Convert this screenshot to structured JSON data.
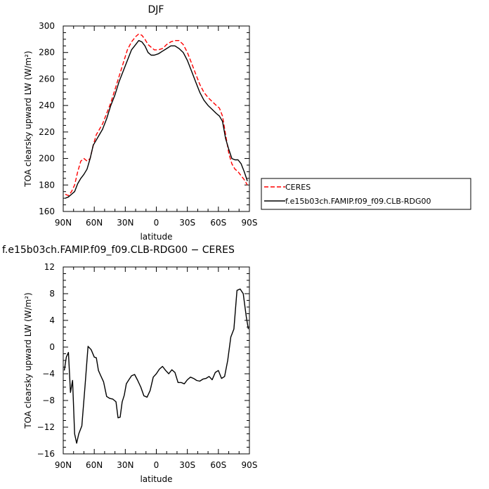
{
  "chart_data": [
    {
      "type": "line",
      "title": "DJF",
      "xlabel": "latitude",
      "ylabel": "TOA clearsky upward LW (W/m²)",
      "xlim": [
        90,
        -90
      ],
      "ylim": [
        160,
        300
      ],
      "xticks": [
        90,
        60,
        30,
        0,
        -30,
        -60,
        -90
      ],
      "xtick_labels": [
        "90N",
        "60N",
        "30N",
        "0",
        "30S",
        "60S",
        "90S"
      ],
      "yticks": [
        160,
        180,
        200,
        220,
        240,
        260,
        280,
        300
      ],
      "ytick_labels": [
        "160",
        "180",
        "200",
        "220",
        "240",
        "260",
        "280",
        "300"
      ],
      "legend_position": "right",
      "series": [
        {
          "name": "CERES",
          "color": "#ff0000",
          "dash": "dashed",
          "x": [
            88,
            85,
            82,
            79,
            76,
            73,
            70,
            67,
            64,
            61,
            58,
            55,
            52,
            48,
            44,
            40,
            36,
            32,
            28,
            24,
            20,
            17,
            14,
            11,
            8,
            5,
            2,
            -2,
            -6,
            -10,
            -14,
            -18,
            -22,
            -26,
            -30,
            -34,
            -38,
            -42,
            -46,
            -50,
            -54,
            -58,
            -61,
            -64,
            -67,
            -70,
            -73,
            -76,
            -79,
            -82,
            -85,
            -88
          ],
          "y": [
            173,
            172,
            175,
            180,
            190,
            198,
            200,
            198,
            200,
            210,
            218,
            222,
            226,
            234,
            242,
            252,
            262,
            272,
            282,
            288,
            292,
            294,
            293,
            290,
            286,
            284,
            282,
            282,
            283,
            286,
            288,
            289,
            289,
            286,
            280,
            272,
            264,
            256,
            250,
            246,
            243,
            240,
            238,
            232,
            218,
            204,
            196,
            192,
            190,
            187,
            184,
            180
          ]
        },
        {
          "name": "f.e15b03ch.FAMIP.f09_f09.CLB-RDG00",
          "color": "#000000",
          "dash": "solid",
          "x": [
            88,
            85,
            82,
            79,
            76,
            73,
            70,
            67,
            64,
            61,
            58,
            55,
            52,
            48,
            44,
            40,
            36,
            32,
            28,
            24,
            20,
            17,
            14,
            11,
            8,
            5,
            2,
            -2,
            -6,
            -10,
            -14,
            -18,
            -22,
            -26,
            -30,
            -34,
            -38,
            -42,
            -46,
            -50,
            -54,
            -58,
            -61,
            -64,
            -67,
            -70,
            -73,
            -76,
            -79,
            -82,
            -85,
            -88
          ],
          "y": [
            170,
            171,
            173,
            175,
            181,
            185,
            188,
            192,
            200,
            210,
            214,
            218,
            222,
            230,
            240,
            248,
            258,
            266,
            274,
            282,
            286,
            289,
            288,
            285,
            280,
            278,
            278,
            279,
            281,
            283,
            285,
            285,
            283,
            280,
            274,
            266,
            258,
            250,
            244,
            240,
            237,
            234,
            232,
            228,
            215,
            207,
            200,
            199,
            199,
            196,
            190,
            183
          ]
        }
      ]
    },
    {
      "type": "line",
      "title": "f.e15b03ch.FAMIP.f09_f09.CLB-RDG00 − CERES",
      "xlabel": "latitude",
      "ylabel": "TOA clearsky upward LW (W/m²)",
      "xlim": [
        90,
        -90
      ],
      "ylim": [
        -16,
        12
      ],
      "xticks": [
        90,
        60,
        30,
        0,
        -30,
        -60,
        -90
      ],
      "xtick_labels": [
        "90N",
        "60N",
        "30N",
        "0",
        "30S",
        "60S",
        "90S"
      ],
      "yticks": [
        -16,
        -12,
        -8,
        -4,
        0,
        4,
        8,
        12
      ],
      "ytick_labels": [
        "−16",
        "−12",
        "−8",
        "−4",
        "0",
        "4",
        "8",
        "12"
      ],
      "series": [
        {
          "color": "#000000",
          "dash": "solid",
          "x": [
            89,
            87,
            85,
            83,
            81,
            79,
            77,
            75,
            72,
            69,
            66,
            63,
            60,
            58,
            56,
            54,
            51,
            48,
            45,
            42,
            39,
            37,
            35,
            33,
            31,
            29,
            27,
            24,
            21,
            18,
            15,
            12,
            9,
            6,
            3,
            0,
            -3,
            -6,
            -9,
            -12,
            -15,
            -18,
            -21,
            -24,
            -27,
            -30,
            -33,
            -36,
            -39,
            -42,
            -45,
            -48,
            -51,
            -54,
            -57,
            -60,
            -63,
            -66,
            -69,
            -72,
            -75,
            -78,
            -81,
            -84,
            -87,
            -89
          ],
          "y": [
            -3.5,
            -1.5,
            -0.8,
            -6.8,
            -5.0,
            -13.0,
            -14.4,
            -13.0,
            -11.8,
            -6.0,
            0.1,
            -0.4,
            -1.5,
            -1.6,
            -3.5,
            -4.2,
            -5.2,
            -7.4,
            -7.7,
            -7.8,
            -8.2,
            -10.6,
            -10.5,
            -8.2,
            -7.2,
            -5.5,
            -5.0,
            -4.3,
            -4.1,
            -5.0,
            -6.0,
            -7.3,
            -7.5,
            -6.5,
            -4.5,
            -4.0,
            -3.3,
            -2.9,
            -3.5,
            -4.0,
            -3.4,
            -3.8,
            -5.3,
            -5.3,
            -5.5,
            -4.9,
            -4.5,
            -4.7,
            -5.0,
            -5.1,
            -4.8,
            -4.7,
            -4.4,
            -4.9,
            -3.8,
            -3.5,
            -4.7,
            -4.4,
            -2.0,
            1.5,
            2.7,
            8.5,
            8.7,
            8.0,
            4.5,
            2.7
          ]
        }
      ]
    }
  ]
}
